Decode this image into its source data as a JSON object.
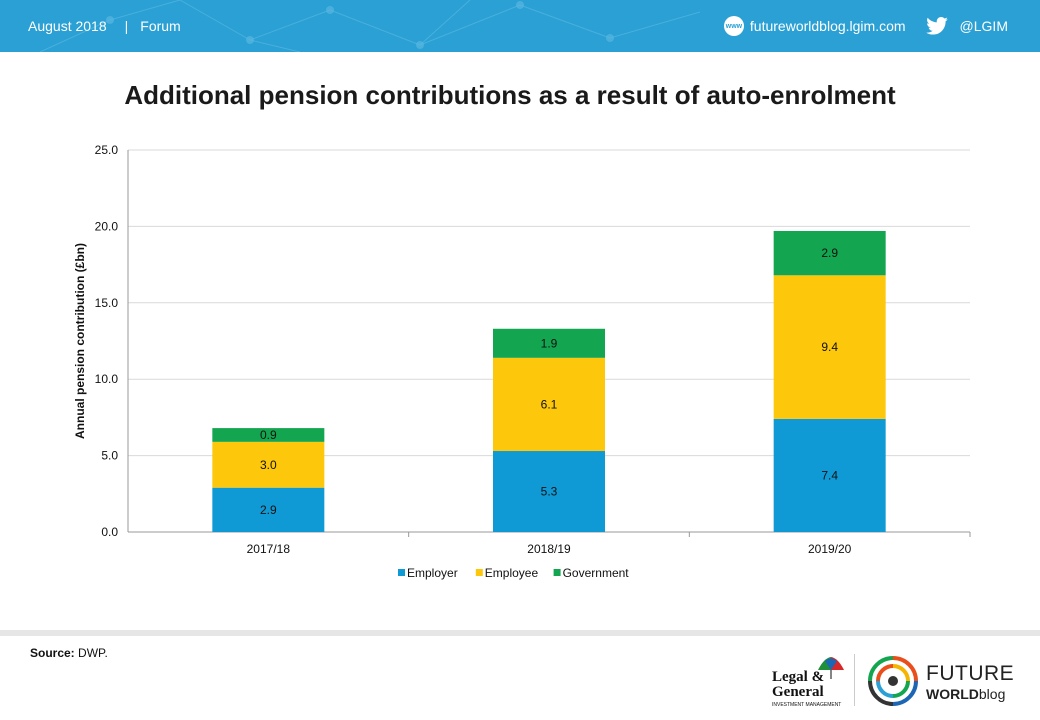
{
  "header": {
    "date": "August 2018",
    "separator": "|",
    "section": "Forum",
    "www_icon": "www",
    "website": "futureworldblog.lgim.com",
    "twitter_handle": "@LGIM",
    "bar_color": "#2aa0d4"
  },
  "chart_data": {
    "type": "bar",
    "stacked": true,
    "title": "Additional pension contributions as a result of auto-enrolment",
    "ylabel": "Annual pension contribution (£bn)",
    "xlabel": "",
    "ylim": [
      0,
      25
    ],
    "yticks": [
      "0.0",
      "5.0",
      "10.0",
      "15.0",
      "20.0",
      "25.0"
    ],
    "categories": [
      "2017/18",
      "2018/19",
      "2019/20"
    ],
    "series": [
      {
        "name": "Employer",
        "color": "#0f9ad5",
        "values": [
          2.9,
          5.3,
          7.4
        ],
        "labels": [
          "2.9",
          "5.3",
          "7.4"
        ]
      },
      {
        "name": "Employee",
        "color": "#fdc70b",
        "values": [
          3.0,
          6.1,
          9.4
        ],
        "labels": [
          "3.0",
          "6.1",
          "9.4"
        ]
      },
      {
        "name": "Government",
        "color": "#14a550",
        "values": [
          0.9,
          1.9,
          2.9
        ],
        "labels": [
          "0.9",
          "1.9",
          "2.9"
        ]
      }
    ],
    "grid": true,
    "legend": "bottom"
  },
  "footer": {
    "source_label": "Source:",
    "source_text": " DWP.",
    "lg_line1": "Legal &",
    "lg_line2": "General",
    "lg_sub": "INVESTMENT MANAGEMENT",
    "fw_future": "FUTURE",
    "fw_world": "WORLD",
    "fw_blog": "blog"
  }
}
